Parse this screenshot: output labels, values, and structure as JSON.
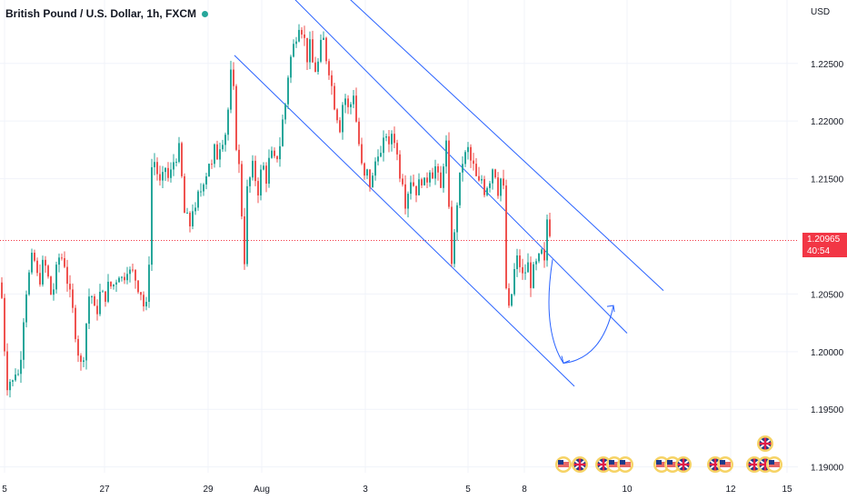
{
  "header": {
    "symbol_title": "British Pound / U.S. Dollar, 1h, FXCM",
    "currency": "USD"
  },
  "price_badge": {
    "price": "1.20965",
    "countdown": "40:54"
  },
  "colors": {
    "bull": "#26a69a",
    "bear": "#ef5350",
    "channel": "#2962ff",
    "price_line": "#f23645",
    "axis_text": "#131722"
  },
  "chart_data": {
    "type": "candlestick",
    "x_axis_labels": [
      "5",
      "27",
      "29",
      "Aug",
      "3",
      "5",
      "8",
      "10",
      "12",
      "15"
    ],
    "y_axis_labels": [
      "1.22500",
      "1.22000",
      "1.21500",
      "1.20500",
      "1.20000",
      "1.19500",
      "1.19000"
    ],
    "ylim": [
      1.1895,
      1.2305
    ],
    "current_price": 1.20965,
    "price_path": [
      [
        0,
        1.206
      ],
      [
        3,
        1.204
      ],
      [
        6,
        1.1985
      ],
      [
        9,
        1.1965
      ],
      [
        12,
        1.198
      ],
      [
        15,
        1.197
      ],
      [
        18,
        1.199
      ],
      [
        21,
        1.1975
      ],
      [
        24,
        1.201
      ],
      [
        27,
        1.204
      ],
      [
        30,
        1.206
      ],
      [
        33,
        1.207
      ],
      [
        36,
        1.2085
      ],
      [
        39,
        1.2075
      ],
      [
        42,
        1.206
      ],
      [
        45,
        1.2065
      ],
      [
        48,
        1.208
      ],
      [
        51,
        1.207
      ],
      [
        54,
        1.206
      ],
      [
        57,
        1.2045
      ],
      [
        60,
        1.206
      ],
      [
        63,
        1.2075
      ],
      [
        66,
        1.2085
      ],
      [
        69,
        1.208
      ],
      [
        72,
        1.2075
      ],
      [
        75,
        1.2055
      ],
      [
        78,
        1.2045
      ],
      [
        81,
        1.203
      ],
      [
        84,
        1.201
      ],
      [
        87,
        1.1995
      ],
      [
        90,
        1.1985
      ],
      [
        93,
        1.2005
      ],
      [
        96,
        1.2035
      ],
      [
        99,
        1.2055
      ],
      [
        102,
        1.2045
      ],
      [
        105,
        1.203
      ],
      [
        108,
        1.204
      ],
      [
        111,
        1.2055
      ],
      [
        114,
        1.2045
      ],
      [
        117,
        1.205
      ],
      [
        120,
        1.206
      ],
      [
        123,
        1.2055
      ],
      [
        126,
        1.206
      ],
      [
        129,
        1.2065
      ],
      [
        132,
        1.207
      ],
      [
        135,
        1.206
      ],
      [
        138,
        1.207
      ],
      [
        141,
        1.2075
      ],
      [
        144,
        1.2065
      ],
      [
        147,
        1.207
      ],
      [
        150,
        1.206
      ],
      [
        153,
        1.2055
      ],
      [
        156,
        1.205
      ],
      [
        159,
        1.2035
      ],
      [
        162,
        1.204
      ],
      [
        165,
        1.21
      ],
      [
        167,
        1.216
      ],
      [
        170,
        1.2165
      ],
      [
        173,
        1.2155
      ],
      [
        176,
        1.2145
      ],
      [
        179,
        1.215
      ],
      [
        182,
        1.216
      ],
      [
        185,
        1.215
      ],
      [
        188,
        1.2155
      ],
      [
        191,
        1.2165
      ],
      [
        194,
        1.217
      ],
      [
        197,
        1.2175
      ],
      [
        200,
        1.215
      ],
      [
        203,
        1.212
      ],
      [
        206,
        1.2115
      ],
      [
        209,
        1.211
      ],
      [
        212,
        1.2125
      ],
      [
        215,
        1.212
      ],
      [
        218,
        1.2135
      ],
      [
        221,
        1.214
      ],
      [
        224,
        1.215
      ],
      [
        227,
        1.2155
      ],
      [
        230,
        1.2165
      ],
      [
        233,
        1.216
      ],
      [
        236,
        1.2175
      ],
      [
        239,
        1.217
      ],
      [
        242,
        1.218
      ],
      [
        245,
        1.2185
      ],
      [
        248,
        1.219
      ],
      [
        251,
        1.221
      ],
      [
        254,
        1.224
      ],
      [
        257,
        1.2225
      ],
      [
        260,
        1.218
      ],
      [
        263,
        1.216
      ],
      [
        266,
        1.212
      ],
      [
        269,
        1.208
      ],
      [
        272,
        1.214
      ],
      [
        275,
        1.215
      ],
      [
        278,
        1.216
      ],
      [
        281,
        1.215
      ],
      [
        284,
        1.214
      ],
      [
        287,
        1.2155
      ],
      [
        290,
        1.216
      ],
      [
        293,
        1.215
      ],
      [
        296,
        1.2165
      ],
      [
        299,
        1.217
      ],
      [
        302,
        1.2165
      ],
      [
        305,
        1.217
      ],
      [
        308,
        1.218
      ],
      [
        311,
        1.22
      ],
      [
        314,
        1.2215
      ],
      [
        317,
        1.224
      ],
      [
        320,
        1.2255
      ],
      [
        323,
        1.2265
      ],
      [
        326,
        1.2275
      ],
      [
        329,
        1.2285
      ],
      [
        332,
        1.228
      ],
      [
        335,
        1.227
      ],
      [
        338,
        1.2255
      ],
      [
        341,
        1.2265
      ],
      [
        344,
        1.225
      ],
      [
        347,
        1.2245
      ],
      [
        350,
        1.225
      ],
      [
        353,
        1.2265
      ],
      [
        356,
        1.227
      ],
      [
        359,
        1.2255
      ],
      [
        362,
        1.2245
      ],
      [
        365,
        1.223
      ],
      [
        368,
        1.2215
      ],
      [
        371,
        1.2205
      ],
      [
        374,
        1.2195
      ],
      [
        377,
        1.2215
      ],
      [
        380,
        1.222
      ],
      [
        383,
        1.221
      ],
      [
        386,
        1.2215
      ],
      [
        389,
        1.2225
      ],
      [
        392,
        1.22
      ],
      [
        395,
        1.218
      ],
      [
        398,
        1.216
      ],
      [
        401,
        1.215
      ],
      [
        404,
        1.2155
      ],
      [
        407,
        1.2145
      ],
      [
        410,
        1.215
      ],
      [
        413,
        1.2165
      ],
      [
        416,
        1.2175
      ],
      [
        419,
        1.217
      ],
      [
        422,
        1.218
      ],
      [
        425,
        1.219
      ],
      [
        428,
        1.2175
      ],
      [
        431,
        1.219
      ],
      [
        434,
        1.2185
      ],
      [
        437,
        1.217
      ],
      [
        440,
        1.2155
      ],
      [
        443,
        1.215
      ],
      [
        446,
        1.213
      ],
      [
        449,
        1.214
      ],
      [
        452,
        1.215
      ],
      [
        455,
        1.2145
      ],
      [
        458,
        1.214
      ],
      [
        461,
        1.2145
      ],
      [
        464,
        1.215
      ],
      [
        467,
        1.2145
      ],
      [
        470,
        1.215
      ],
      [
        473,
        1.216
      ],
      [
        476,
        1.2155
      ],
      [
        479,
        1.216
      ],
      [
        482,
        1.215
      ],
      [
        485,
        1.214
      ],
      [
        488,
        1.2165
      ],
      [
        491,
        1.218
      ],
      [
        494,
        1.212
      ],
      [
        497,
        1.208
      ],
      [
        500,
        1.21
      ],
      [
        503,
        1.213
      ],
      [
        506,
        1.215
      ],
      [
        509,
        1.2165
      ],
      [
        512,
        1.217
      ],
      [
        515,
        1.2175
      ],
      [
        518,
        1.2165
      ],
      [
        521,
        1.216
      ],
      [
        524,
        1.215
      ],
      [
        527,
        1.2145
      ],
      [
        530,
        1.215
      ],
      [
        533,
        1.214
      ],
      [
        536,
        1.2145
      ],
      [
        539,
        1.215
      ],
      [
        542,
        1.216
      ],
      [
        545,
        1.2155
      ],
      [
        548,
        1.214
      ],
      [
        551,
        1.215
      ],
      [
        554,
        1.214
      ],
      [
        557,
        1.2055
      ],
      [
        560,
        1.2035
      ],
      [
        563,
        1.205
      ],
      [
        566,
        1.207
      ],
      [
        569,
        1.208
      ],
      [
        572,
        1.2075
      ],
      [
        575,
        1.2065
      ],
      [
        578,
        1.207
      ],
      [
        581,
        1.2075
      ],
      [
        584,
        1.206
      ],
      [
        587,
        1.207
      ],
      [
        590,
        1.2075
      ],
      [
        593,
        1.208
      ],
      [
        596,
        1.2085
      ],
      [
        599,
        1.2075
      ],
      [
        602,
        1.2115
      ],
      [
        605,
        1.2105
      ],
      [
        606,
        1.20965
      ]
    ],
    "channel_lines": [
      {
        "from": [
          258,
          1.2257
        ],
        "to": [
          632,
          1.197
        ]
      },
      {
        "from": [
          315,
          1.2313
        ],
        "to": [
          690,
          1.2016
        ]
      },
      {
        "from": [
          375,
          1.2313
        ],
        "to": [
          730,
          1.2053
        ]
      }
    ],
    "projection_arrow": {
      "start": [
        608,
        1.208
      ],
      "bottom": [
        620,
        1.199
      ],
      "end": [
        675,
        1.204
      ]
    }
  },
  "events": {
    "rows": [
      {
        "x": [
          620,
          638,
          664,
          676,
          688,
          728,
          740,
          752,
          787,
          798,
          830,
          842,
          852
        ],
        "icons": [
          "us-flag",
          "uk-flag",
          "uk-flag",
          "us-flag",
          "us-flag",
          "us-flag",
          "us-flag",
          "uk-flag",
          "uk-flag",
          "us-flag",
          "uk-flag",
          "uk-flag",
          "us-flag"
        ]
      },
      {
        "x": [
          842
        ],
        "icons": [
          "uk-flag"
        ]
      }
    ]
  }
}
